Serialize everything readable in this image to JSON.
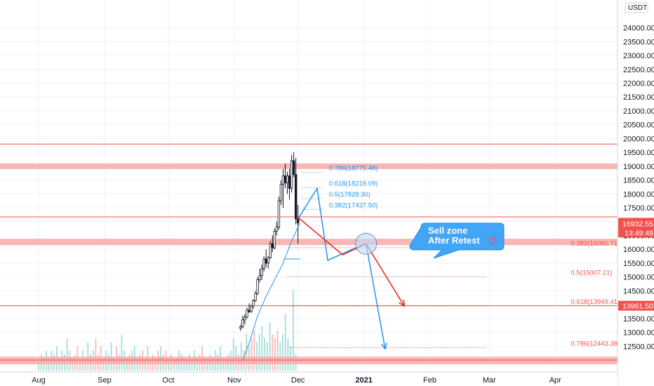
{
  "chart_data": {
    "type": "candlestick",
    "symbol_currency": "USDT",
    "y_axis": {
      "min": 12000,
      "max": 24700,
      "ticks": [
        "24000.00",
        "23500.00",
        "23000.00",
        "22500.00",
        "22000.00",
        "21500.00",
        "21000.00",
        "20500.00",
        "20000.00",
        "19500.00",
        "19000.00",
        "18500.00",
        "18000.00",
        "17500.00",
        "17000.00",
        "16500.00",
        "16000.00",
        "15500.00",
        "15000.00",
        "14500.00",
        "14000.00",
        "13500.00",
        "13000.00",
        "12500.00"
      ]
    },
    "x_axis": {
      "labels": [
        {
          "text": "Aug",
          "day": 0
        },
        {
          "text": "Sep",
          "day": 31
        },
        {
          "text": "Oct",
          "day": 61
        },
        {
          "text": "Nov",
          "day": 92
        },
        {
          "text": "Dec",
          "day": 122
        },
        {
          "text": "2021",
          "day": 153
        },
        {
          "text": "Feb",
          "day": 184
        },
        {
          "text": "Mar",
          "day": 212
        },
        {
          "text": "Apr",
          "day": 243
        }
      ]
    },
    "last_price": {
      "value": 16932.55,
      "label": "16932.55",
      "countdown": "13:49:49",
      "color": "#ef5350"
    },
    "level_tag": {
      "value": 13961.5,
      "label": "13961.50",
      "color": "#ef5350"
    },
    "horizontal_lines": [
      19800,
      17170,
      13961.5,
      12000
    ],
    "zones": [
      {
        "low": 18900,
        "high": 19100
      },
      {
        "low": 16150,
        "high": 16380
      },
      {
        "low": 11850,
        "high": 12120
      }
    ],
    "candles": [
      {
        "o": 13150,
        "h": 13280,
        "l": 13050,
        "c": 13200
      },
      {
        "o": 13200,
        "h": 13600,
        "l": 13150,
        "c": 13450
      },
      {
        "o": 13450,
        "h": 13650,
        "l": 13300,
        "c": 13550
      },
      {
        "o": 13550,
        "h": 13900,
        "l": 13500,
        "c": 13800
      },
      {
        "o": 13800,
        "h": 14050,
        "l": 13700,
        "c": 13750
      },
      {
        "o": 13750,
        "h": 14000,
        "l": 13700,
        "c": 13950
      },
      {
        "o": 13950,
        "h": 14200,
        "l": 13850,
        "c": 14150
      },
      {
        "o": 14150,
        "h": 14500,
        "l": 14100,
        "c": 14400
      },
      {
        "o": 14400,
        "h": 15000,
        "l": 14350,
        "c": 14900
      },
      {
        "o": 14900,
        "h": 15300,
        "l": 14800,
        "c": 15050
      },
      {
        "o": 15050,
        "h": 15450,
        "l": 14900,
        "c": 15300
      },
      {
        "o": 15300,
        "h": 15750,
        "l": 15200,
        "c": 15650
      },
      {
        "o": 15650,
        "h": 16000,
        "l": 15350,
        "c": 15500
      },
      {
        "o": 15500,
        "h": 15750,
        "l": 15300,
        "c": 15700
      },
      {
        "o": 15700,
        "h": 16300,
        "l": 15650,
        "c": 16200
      },
      {
        "o": 16200,
        "h": 16500,
        "l": 15900,
        "c": 16050
      },
      {
        "o": 16050,
        "h": 16750,
        "l": 16000,
        "c": 16650
      },
      {
        "o": 16650,
        "h": 17000,
        "l": 16500,
        "c": 16800
      },
      {
        "o": 16800,
        "h": 17900,
        "l": 16700,
        "c": 17750
      },
      {
        "o": 17750,
        "h": 18500,
        "l": 17600,
        "c": 18350
      },
      {
        "o": 18350,
        "h": 18900,
        "l": 17500,
        "c": 18650
      },
      {
        "o": 18650,
        "h": 19100,
        "l": 18200,
        "c": 18400
      },
      {
        "o": 18400,
        "h": 18800,
        "l": 18000,
        "c": 18650
      },
      {
        "o": 18650,
        "h": 18900,
        "l": 17800,
        "c": 18200
      },
      {
        "o": 18200,
        "h": 19400,
        "l": 18050,
        "c": 19200
      },
      {
        "o": 19200,
        "h": 19500,
        "l": 18600,
        "c": 18700
      },
      {
        "o": 18700,
        "h": 19300,
        "l": 16900,
        "c": 17100
      },
      {
        "o": 17100,
        "h": 17600,
        "l": 16200,
        "c": 16950
      }
    ],
    "ma_line": [
      [
        1,
        12000
      ],
      [
        4,
        12600
      ],
      [
        8,
        13600
      ],
      [
        12,
        14300
      ],
      [
        16,
        14900
      ],
      [
        20,
        15500
      ],
      [
        24,
        16300
      ],
      [
        27,
        16800
      ],
      [
        28,
        16950
      ]
    ],
    "volume": [
      2,
      4,
      3,
      5,
      3,
      5,
      4,
      6,
      3,
      5,
      4,
      8,
      5,
      3,
      4,
      6,
      2,
      5,
      3,
      7,
      4,
      5,
      8,
      4,
      6,
      3,
      5,
      4,
      7,
      3,
      6,
      4,
      9,
      5,
      3,
      4,
      5,
      6,
      3,
      4,
      5,
      3,
      6,
      2,
      4,
      3,
      5,
      6,
      4,
      5,
      3,
      4,
      2,
      3,
      5,
      4,
      3,
      2,
      4,
      3,
      5,
      3,
      4,
      6,
      3,
      2,
      4,
      3,
      5,
      4,
      6,
      3,
      2,
      4,
      5,
      8,
      6,
      4,
      7,
      5,
      9,
      6,
      8,
      10,
      7,
      9,
      11,
      8,
      7,
      12,
      9,
      8,
      10,
      7,
      9,
      14,
      8,
      6,
      20,
      4
    ],
    "fib_upper": {
      "x_start_day": 124,
      "x_end_day": 134,
      "levels": [
        {
          "value": 18775.48,
          "label": "0.786(18775.48)"
        },
        {
          "value": 18219.09,
          "label": "0.618(18219.09)"
        },
        {
          "value": 17828.3,
          "label": "0.5(17828.30)"
        },
        {
          "value": 17437.5,
          "label": "0.382(17437.50)"
        }
      ]
    },
    "fib_lower": {
      "x_start_day": 117,
      "x_end_day": 211,
      "levels": [
        {
          "value": 16060.71,
          "label": "0.382(16060.71)"
        },
        {
          "value": 15007.21,
          "label": "0.5(15007.21)"
        },
        {
          "value": 13949.41,
          "label": "0.618(13949.41)"
        },
        {
          "value": 12443.38,
          "label": "0.786(12443.38)"
        }
      ]
    },
    "projection_blue": [
      [
        122,
        17100
      ],
      [
        131,
        18200
      ],
      [
        136,
        15600
      ],
      [
        146,
        15950
      ],
      [
        154,
        16200
      ],
      [
        163,
        12400
      ]
    ],
    "projection_red": [
      [
        122,
        17150
      ],
      [
        143,
        15800
      ],
      [
        154,
        16200
      ],
      [
        172,
        13950
      ]
    ],
    "annotation": {
      "line1": "Sell zone",
      "line2": "After Retest",
      "day": 154,
      "value": 16200
    }
  }
}
